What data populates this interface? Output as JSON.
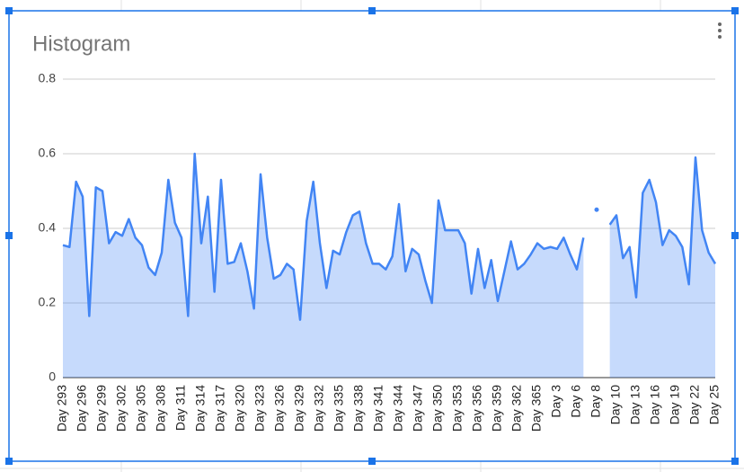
{
  "chart_data": {
    "type": "area",
    "title": "Histogram",
    "categories": [
      "Day 293",
      null,
      null,
      "Day 296",
      null,
      null,
      "Day 299",
      null,
      null,
      "Day 302",
      null,
      null,
      "Day 305",
      null,
      null,
      "Day 308",
      null,
      null,
      "Day 311",
      null,
      null,
      "Day 314",
      null,
      null,
      "Day 317",
      null,
      null,
      "Day 320",
      null,
      null,
      "Day 323",
      null,
      null,
      "Day 326",
      null,
      null,
      "Day 329",
      null,
      null,
      "Day 332",
      null,
      null,
      "Day 335",
      null,
      null,
      "Day 338",
      null,
      null,
      "Day 341",
      null,
      null,
      "Day 344",
      null,
      null,
      "Day 347",
      null,
      null,
      "Day 350",
      null,
      null,
      "Day 353",
      null,
      null,
      "Day 356",
      null,
      null,
      "Day 359",
      null,
      null,
      "Day 362",
      null,
      null,
      "Day 365",
      null,
      null,
      "Day 3",
      null,
      null,
      "Day 6",
      null,
      null,
      "Day 8",
      null,
      null,
      "Day 10",
      null,
      null,
      "Day 13",
      null,
      null,
      "Day 16",
      null,
      null,
      "Day 19",
      null,
      null,
      "Day 22",
      null,
      null,
      "Day 25"
    ],
    "values": [
      0.355,
      0.35,
      0.525,
      0.485,
      0.165,
      0.51,
      0.5,
      0.36,
      0.39,
      0.38,
      0.425,
      0.375,
      0.355,
      0.295,
      0.275,
      0.335,
      0.53,
      0.415,
      0.375,
      0.165,
      0.6,
      0.36,
      0.485,
      0.23,
      0.53,
      0.305,
      0.31,
      0.36,
      0.285,
      0.185,
      0.545,
      0.375,
      0.265,
      0.275,
      0.305,
      0.29,
      0.155,
      0.42,
      0.525,
      0.36,
      0.24,
      0.34,
      0.33,
      0.39,
      0.435,
      0.445,
      0.36,
      0.305,
      0.305,
      0.29,
      0.325,
      0.465,
      0.285,
      0.345,
      0.33,
      0.26,
      0.2,
      0.475,
      0.395,
      0.395,
      0.395,
      0.36,
      0.225,
      0.345,
      0.24,
      0.315,
      0.205,
      0.285,
      0.365,
      0.29,
      0.305,
      0.33,
      0.36,
      0.345,
      0.35,
      0.345,
      0.375,
      0.33,
      0.29,
      0.375,
      null,
      0.45,
      null,
      0.41,
      0.435,
      0.32,
      0.35,
      0.215,
      0.495,
      0.53,
      0.47,
      0.355,
      0.395,
      0.38,
      0.35,
      0.25,
      0.59,
      0.395,
      0.335,
      0.305
    ],
    "color": "#4285f4",
    "ylim": [
      0,
      0.8
    ],
    "yticks": [
      0,
      0.2,
      0.4,
      0.6,
      0.8
    ],
    "grid": true
  }
}
